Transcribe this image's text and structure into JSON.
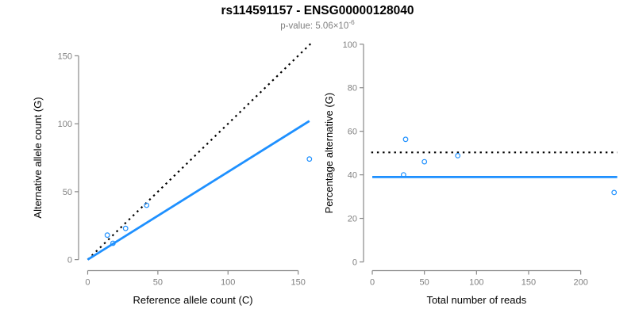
{
  "header": {
    "title": "rs114591157 - ENSG00000128040",
    "subtitle_base": "p-value: 5.06×10",
    "subtitle_exponent": "-6"
  },
  "colors": {
    "accent_blue": "#1E90FF",
    "line_black": "#000000",
    "axis_gray": "#888888",
    "tick_label_gray": "#808080",
    "title_black": "#000000",
    "subtitle_gray": "#808080"
  },
  "chart_data": [
    {
      "type": "scatter",
      "name": "allele-counts",
      "xlabel": "Reference allele count (C)",
      "ylabel": "Alternative allele count (G)",
      "xticks": [
        0,
        50,
        100,
        150
      ],
      "yticks": [
        0,
        50,
        100,
        150
      ],
      "xlim": [
        -6.5,
        163.5
      ],
      "ylim": [
        -8.1,
        161.9
      ],
      "points": [
        [
          14,
          18
        ],
        [
          18,
          12
        ],
        [
          27,
          23
        ],
        [
          42,
          40
        ],
        [
          158,
          74
        ]
      ],
      "lines": [
        {
          "name": "identity-line",
          "style": "dotted",
          "color": "#000000",
          "from": [
            0,
            0
          ],
          "to": [
            160,
            160
          ]
        },
        {
          "name": "fit-line",
          "style": "solid",
          "color": "#1E90FF",
          "from": [
            0,
            0
          ],
          "to": [
            158,
            102
          ]
        }
      ]
    },
    {
      "type": "scatter",
      "name": "percentage-alternative",
      "xlabel": "Total number of reads",
      "ylabel": "Percentage alternative (G)",
      "xticks": [
        0,
        50,
        100,
        150,
        200
      ],
      "yticks": [
        0,
        20,
        40,
        60,
        80,
        100
      ],
      "xlim": [
        -8.4,
        241.4
      ],
      "ylim": [
        -4.0,
        102.1
      ],
      "points": [
        [
          32,
          56.3
        ],
        [
          30,
          40
        ],
        [
          50,
          46
        ],
        [
          82,
          48.8
        ],
        [
          232,
          31.9
        ]
      ],
      "lines": [
        {
          "name": "expected-50-line",
          "style": "dotted",
          "color": "#000000",
          "from": [
            -1,
            50.3
          ],
          "to": [
            235,
            50.3
          ]
        },
        {
          "name": "fit-line",
          "style": "solid",
          "color": "#1E90FF",
          "from": [
            0,
            39
          ],
          "to": [
            235,
            39
          ]
        }
      ]
    }
  ]
}
